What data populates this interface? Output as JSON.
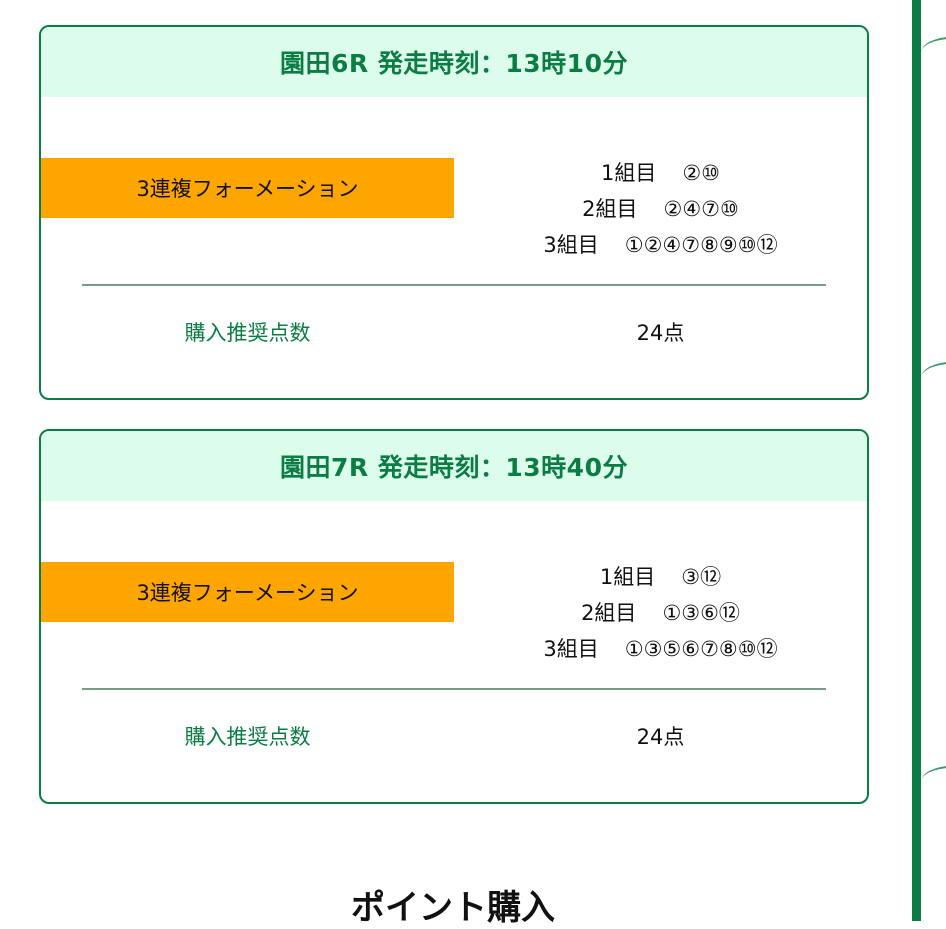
{
  "races": [
    {
      "title": "園田6R 発走時刻：13時10分",
      "bet_type": "3連複フォーメーション",
      "groups": [
        {
          "label": "1組目",
          "numbers": "②⑩"
        },
        {
          "label": "2組目",
          "numbers": "②④⑦⑩"
        },
        {
          "label": "3組目",
          "numbers": "①②④⑦⑧⑨⑩⑫"
        }
      ],
      "recommended_label": "購入推奨点数",
      "recommended_value": "24点"
    },
    {
      "title": "園田7R 発走時刻：13時40分",
      "bet_type": "3連複フォーメーション",
      "groups": [
        {
          "label": "1組目",
          "numbers": "③⑫"
        },
        {
          "label": "2組目",
          "numbers": "①③⑥⑫"
        },
        {
          "label": "3組目",
          "numbers": "①③⑤⑥⑦⑧⑩⑫"
        }
      ],
      "recommended_label": "購入推奨点数",
      "recommended_value": "24点"
    }
  ],
  "section_title": "ポイント購入",
  "colors": {
    "accent": "#0b7c43",
    "header_bg": "#dcfdec",
    "bet_type_bg": "#ffa500"
  }
}
